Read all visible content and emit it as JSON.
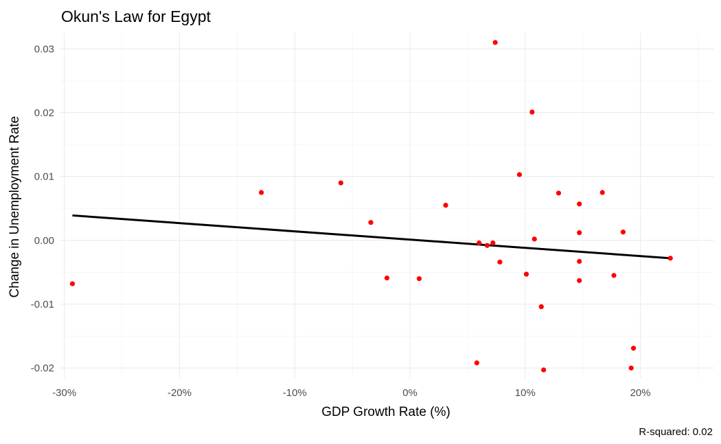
{
  "chart_data": {
    "type": "scatter",
    "title": "Okun's Law for Egypt",
    "xlabel": "GDP Growth Rate (%)",
    "ylabel": "Change in Unemployment Rate",
    "caption": "R-squared: 0.02",
    "xlim": [
      -30.4,
      26.4
    ],
    "ylim": [
      -0.0216,
      0.0325
    ],
    "x_ticks": [
      -30,
      -20,
      -10,
      0,
      10,
      20
    ],
    "x_tick_labels": [
      "-30%",
      "-20%",
      "-10%",
      "0%",
      "10%",
      "20%"
    ],
    "y_ticks": [
      -0.02,
      -0.01,
      0.0,
      0.01,
      0.02,
      0.03
    ],
    "y_tick_labels": [
      "-0.02",
      "-0.01",
      "0.00",
      "0.01",
      "0.02",
      "0.03"
    ],
    "grid": true,
    "point_color": "#ff0000",
    "line_color": "#000000",
    "points": [
      {
        "x": -29.3,
        "y": -0.0068
      },
      {
        "x": -12.9,
        "y": 0.0075
      },
      {
        "x": -6.0,
        "y": 0.009
      },
      {
        "x": -3.4,
        "y": 0.0028
      },
      {
        "x": -2.0,
        "y": -0.0059
      },
      {
        "x": 0.8,
        "y": -0.006
      },
      {
        "x": 3.1,
        "y": 0.0055
      },
      {
        "x": 5.8,
        "y": -0.0192
      },
      {
        "x": 6.0,
        "y": -0.0004
      },
      {
        "x": 6.7,
        "y": -0.0008
      },
      {
        "x": 7.2,
        "y": -0.0004
      },
      {
        "x": 7.4,
        "y": 0.031
      },
      {
        "x": 7.8,
        "y": -0.0034
      },
      {
        "x": 9.5,
        "y": 0.0103
      },
      {
        "x": 10.1,
        "y": -0.0053
      },
      {
        "x": 10.6,
        "y": 0.0201
      },
      {
        "x": 10.8,
        "y": 0.0002
      },
      {
        "x": 11.4,
        "y": -0.0104
      },
      {
        "x": 11.6,
        "y": -0.0203
      },
      {
        "x": 12.9,
        "y": 0.0074
      },
      {
        "x": 14.7,
        "y": 0.0057
      },
      {
        "x": 14.7,
        "y": 0.0012
      },
      {
        "x": 14.7,
        "y": -0.0033
      },
      {
        "x": 14.7,
        "y": -0.0063
      },
      {
        "x": 16.7,
        "y": 0.0075
      },
      {
        "x": 17.7,
        "y": -0.0055
      },
      {
        "x": 18.5,
        "y": 0.0013
      },
      {
        "x": 19.2,
        "y": -0.02
      },
      {
        "x": 19.4,
        "y": -0.0169
      },
      {
        "x": 22.6,
        "y": -0.0028
      }
    ],
    "trend_line": {
      "x": [
        -29.3,
        22.6
      ],
      "y": [
        0.0039,
        -0.0028
      ]
    }
  }
}
